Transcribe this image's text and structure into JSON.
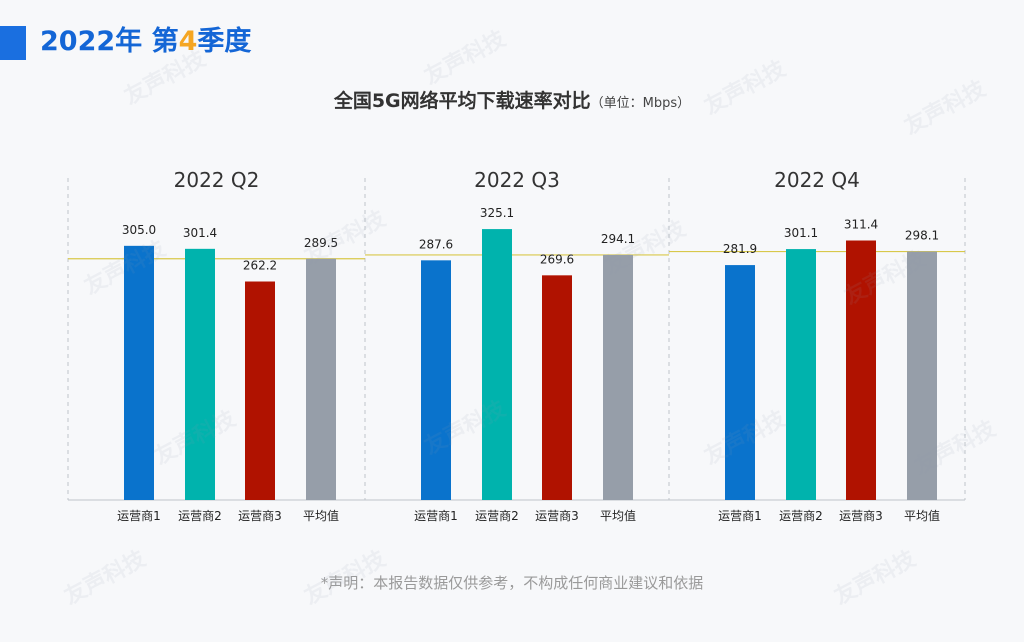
{
  "header": {
    "year_text": "2022年",
    "quarter_pre": "第",
    "quarter_num": "4",
    "quarter_post": "季度"
  },
  "chart_title": {
    "main": "全国5G网络平均下载速率对比",
    "unit": "（单位：Mbps）"
  },
  "footer_note": "*声明：本报告数据仅供参考，不构成任何商业建议和依据",
  "watermark": "友声科技",
  "colors": {
    "operator1": "#0a73cc",
    "operator2": "#00b3ad",
    "operator3": "#b01200",
    "average": "#969ea9",
    "avg_line": "#d8c84a",
    "axis": "#bfc4ca"
  },
  "chart_data": {
    "type": "bar",
    "categories": [
      "运营商1",
      "运营商2",
      "运营商3",
      "平均值"
    ],
    "groups": [
      {
        "label": "2022 Q2",
        "values": [
          305.0,
          301.4,
          262.2,
          289.5
        ],
        "value_labels": [
          "305.0",
          "301.4",
          "262.2",
          "289.5"
        ]
      },
      {
        "label": "2022 Q3",
        "values": [
          287.6,
          325.1,
          269.6,
          294.1
        ],
        "value_labels": [
          "287.6",
          "325.1",
          "269.6",
          "294.1"
        ]
      },
      {
        "label": "2022 Q4",
        "values": [
          281.9,
          301.1,
          311.4,
          298.1
        ],
        "value_labels": [
          "281.9",
          "301.1",
          "311.4",
          "298.1"
        ]
      }
    ],
    "ylim": [
      0,
      360
    ],
    "reference_line": "average",
    "grid": false
  }
}
